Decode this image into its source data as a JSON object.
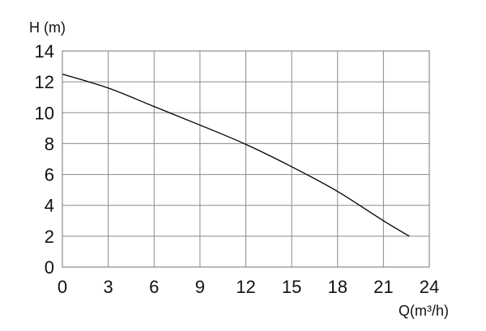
{
  "chart_data": {
    "type": "line",
    "title": "",
    "xlabel": "Q(m³/h)",
    "ylabel": "H (m)",
    "xlim": [
      0,
      24
    ],
    "ylim": [
      0,
      14
    ],
    "xticks": [
      "0",
      "3",
      "6",
      "9",
      "12",
      "15",
      "18",
      "21",
      "24"
    ],
    "yticks": [
      "0",
      "2",
      "4",
      "6",
      "8",
      "10",
      "12",
      "14"
    ],
    "grid": true,
    "series": [
      {
        "x": [
          0,
          3,
          6,
          9,
          12,
          15,
          18,
          21,
          22.7
        ],
        "y": [
          12.5,
          11.6,
          10.4,
          9.2,
          7.95,
          6.5,
          4.9,
          3.0,
          2.0
        ],
        "color": "#000000"
      }
    ]
  }
}
